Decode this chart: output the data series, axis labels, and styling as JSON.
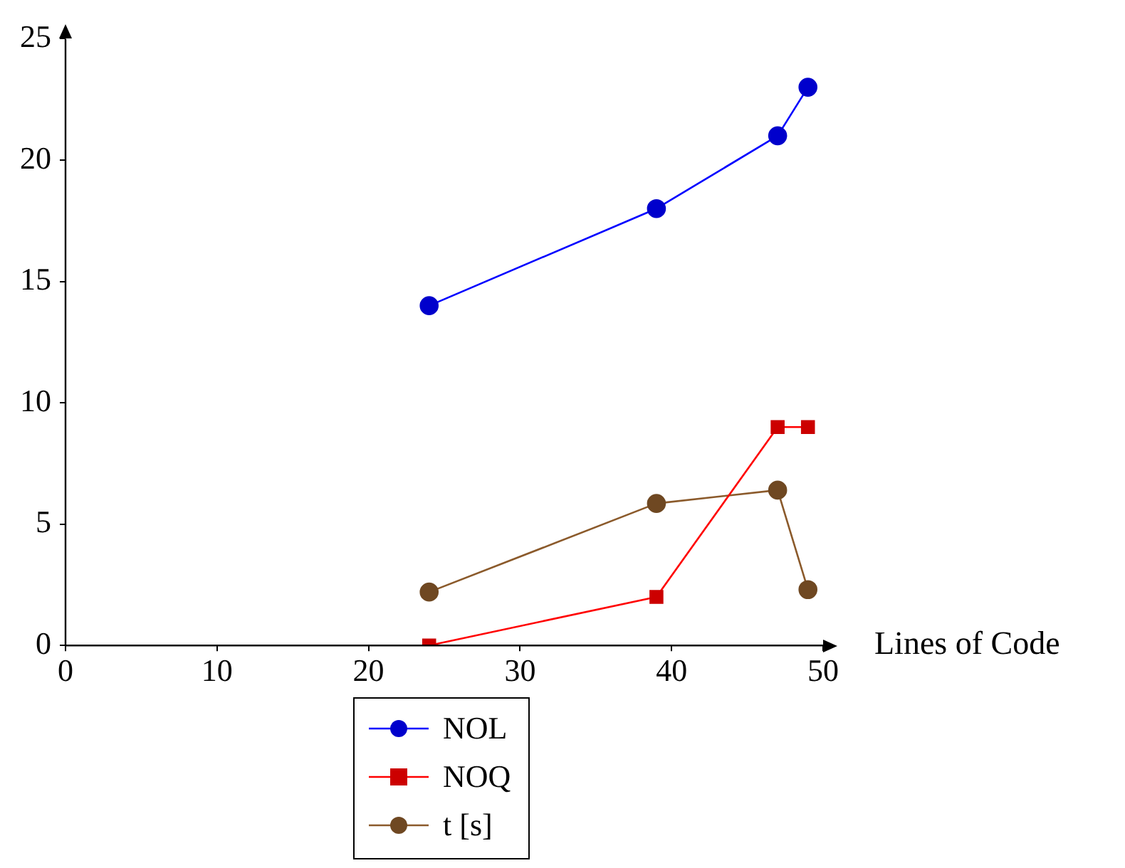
{
  "chart_data": {
    "type": "line",
    "xlabel": "Lines of Code",
    "x": [
      24,
      39,
      47,
      49
    ],
    "series": [
      {
        "name": "NOL",
        "color": "#0000ff",
        "marker": "circle",
        "values": [
          14,
          18,
          21,
          23
        ]
      },
      {
        "name": "NOQ",
        "color": "#ff0000",
        "marker": "square",
        "values": [
          0,
          2,
          9,
          9
        ]
      },
      {
        "name": "t [s]",
        "color": "#8b5a2b",
        "marker": "circle",
        "values": [
          2.2,
          5.85,
          6.4,
          2.3
        ]
      }
    ],
    "xlim": [
      0,
      50
    ],
    "xticks": [
      0,
      10,
      20,
      30,
      40,
      50
    ],
    "ylim": [
      0,
      25
    ],
    "yticks": [
      0,
      5,
      10,
      15,
      20,
      25
    ],
    "grid": false,
    "legend": "bottom"
  }
}
